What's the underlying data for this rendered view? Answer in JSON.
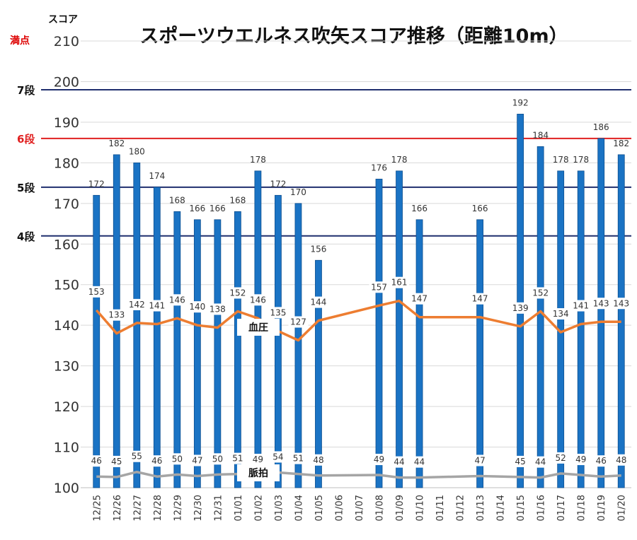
{
  "chart_data": {
    "type": "bar",
    "title": "スポーツウエルネス吹矢スコア推移（距離10m）",
    "ylabel": "スコア",
    "ylim": [
      100,
      210
    ],
    "yticks": [
      100,
      110,
      120,
      130,
      140,
      150,
      160,
      170,
      180,
      190,
      200,
      210
    ],
    "max_label": "満点",
    "grid": true,
    "categories": [
      "12/25",
      "12/26",
      "12/27",
      "12/28",
      "12/29",
      "12/30",
      "12/31",
      "01/01",
      "01/02",
      "01/03",
      "01/04",
      "01/05",
      "01/06",
      "01/07",
      "01/08",
      "01/09",
      "01/10",
      "01/11",
      "01/12",
      "01/13",
      "01/14",
      "01/15",
      "01/16",
      "01/17",
      "01/18",
      "01/19",
      "01/20"
    ],
    "series": [
      {
        "values": [
          172,
          182,
          180,
          174,
          168,
          166,
          166,
          168,
          178,
          172,
          170,
          156,
          null,
          null,
          176,
          178,
          166,
          null,
          null,
          166,
          null,
          192,
          184,
          178,
          178,
          186,
          182
        ]
      },
      {
        "name": "血圧",
        "values": [
          153,
          133,
          142,
          141,
          146,
          140,
          138,
          152,
          146,
          135,
          127,
          144,
          null,
          null,
          157,
          161,
          147,
          null,
          null,
          147,
          null,
          139,
          152,
          134,
          141,
          143,
          143
        ]
      },
      {
        "name": "脈拍",
        "values": [
          46,
          45,
          55,
          46,
          50,
          47,
          50,
          51,
          49,
          54,
          51,
          48,
          null,
          null,
          49,
          44,
          44,
          null,
          null,
          47,
          null,
          45,
          44,
          52,
          49,
          46,
          48
        ]
      }
    ],
    "reference_lines": [
      {
        "label": "7段",
        "value": 198,
        "color": "#1f2f6e"
      },
      {
        "label": "6段",
        "value": 186,
        "color": "#e02020"
      },
      {
        "label": "5段",
        "value": 174,
        "color": "#1f2f6e"
      },
      {
        "label": "4段",
        "value": 162,
        "color": "#1f2f6e"
      }
    ],
    "colors": {
      "bars": "#1a73c4",
      "bar_edge": "#0d4f8f",
      "blood_pressure": "#ed7d31",
      "pulse": "#a5a5a5",
      "grid": "#d9d9d9"
    }
  }
}
